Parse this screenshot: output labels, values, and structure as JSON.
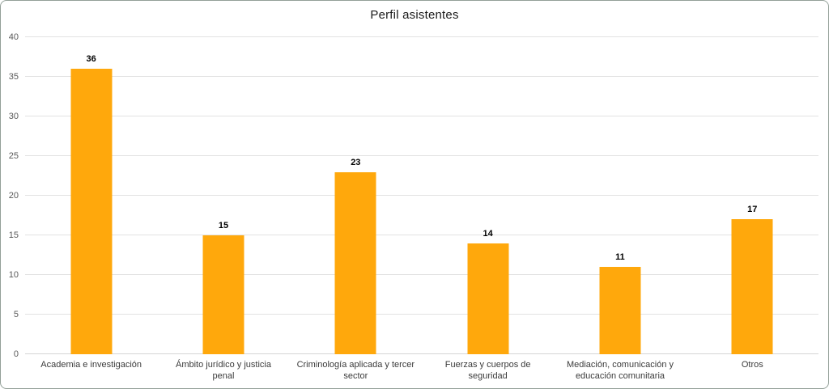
{
  "chart_data": {
    "type": "bar",
    "title": "Perfil asistentes",
    "categories": [
      "Academia e investigación",
      "Ámbito jurídico y justicia penal",
      "Criminología aplicada y tercer sector",
      "Fuerzas y cuerpos de seguridad",
      "Mediación, comunicación y educación comunitaria",
      "Otros"
    ],
    "values": [
      36,
      15,
      23,
      14,
      11,
      17
    ],
    "data_labels": [
      "36",
      "15",
      "23",
      "14",
      "11",
      "17"
    ],
    "xlabel": "",
    "ylabel": "",
    "ylim": [
      0,
      40
    ],
    "yticks": [
      0,
      5,
      10,
      15,
      20,
      25,
      30,
      35,
      40
    ],
    "grid": "horizontal",
    "legend": "none",
    "bar_color": "#FFA80C"
  }
}
